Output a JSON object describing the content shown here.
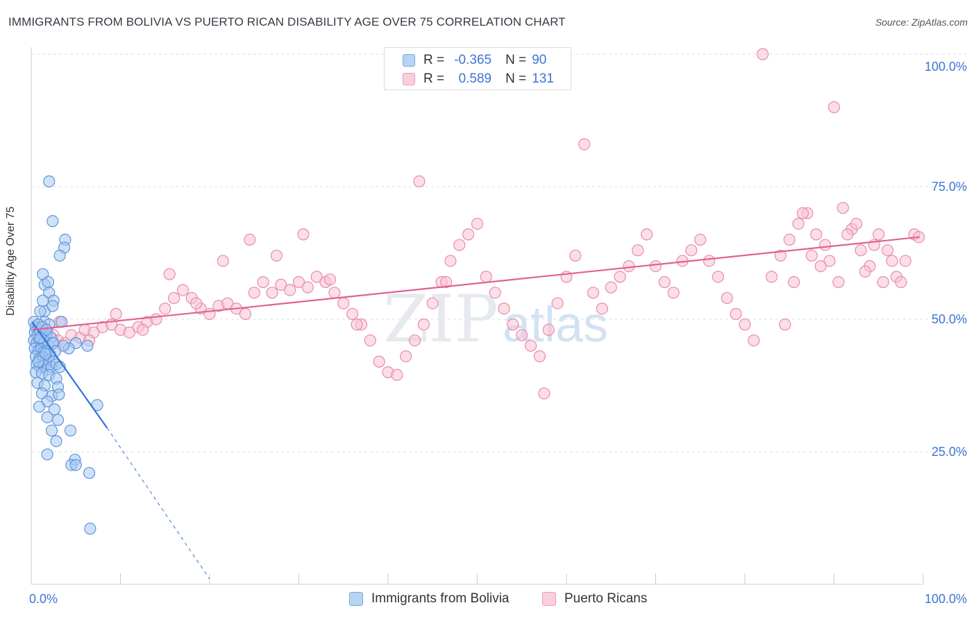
{
  "header": {
    "title": "IMMIGRANTS FROM BOLIVIA VS PUERTO RICAN DISABILITY AGE OVER 75 CORRELATION CHART",
    "source": "Source: ZipAtlas.com"
  },
  "legend": {
    "series1": {
      "r_label": "R =",
      "r_value": "-0.365",
      "n_label": "N =",
      "n_value": "90"
    },
    "series2": {
      "r_label": "R =",
      "r_value": "0.589",
      "n_label": "N =",
      "n_value": "131"
    }
  },
  "watermark": {
    "zip": "ZIP",
    "atlas": "atlas"
  },
  "colors": {
    "blue_fill": "#a8c8f0",
    "blue_stroke": "#5c94dc",
    "blue_line": "#2f72d6",
    "pink_fill": "#f7c3d4",
    "pink_stroke": "#e98aab",
    "pink_line": "#e0628e",
    "axis_text": "#3b75d4",
    "grid": "#dddddd"
  },
  "chart_data": {
    "type": "scatter",
    "title": "IMMIGRANTS FROM BOLIVIA VS PUERTO RICAN DISABILITY AGE OVER 75 CORRELATION CHART",
    "xlabel": "",
    "ylabel": "Disability Age Over 75",
    "x_tick_labels": [
      "0.0%",
      "100.0%"
    ],
    "y_tick_labels": [
      "25.0%",
      "50.0%",
      "75.0%",
      "100.0%"
    ],
    "y_ticks": [
      25,
      50,
      75,
      100
    ],
    "xlim": [
      0,
      100
    ],
    "ylim": [
      0,
      100
    ],
    "series": [
      {
        "name": "Immigrants from Bolivia",
        "r": -0.365,
        "n": 90,
        "trend": {
          "x0": 0.1,
          "y0": 49.5,
          "x1": 8.5,
          "y1": 29.5,
          "dash_x1": 20.0,
          "dash_y1": 1.0
        },
        "points": [
          [
            0.3,
            49.5
          ],
          [
            0.5,
            48.5
          ],
          [
            0.8,
            49
          ],
          [
            1.2,
            48
          ],
          [
            1.5,
            49.5
          ],
          [
            2.0,
            49
          ],
          [
            0.4,
            47.5
          ],
          [
            0.7,
            47
          ],
          [
            1.0,
            47.5
          ],
          [
            1.3,
            46.8
          ],
          [
            1.7,
            47
          ],
          [
            2.2,
            46.5
          ],
          [
            0.3,
            46
          ],
          [
            0.6,
            45.5
          ],
          [
            0.9,
            46
          ],
          [
            1.2,
            45.2
          ],
          [
            1.5,
            45.8
          ],
          [
            1.9,
            45
          ],
          [
            2.4,
            45.5
          ],
          [
            0.4,
            44.5
          ],
          [
            0.8,
            44
          ],
          [
            1.1,
            44.3
          ],
          [
            1.4,
            43.8
          ],
          [
            1.8,
            44
          ],
          [
            2.1,
            43.5
          ],
          [
            0.5,
            43
          ],
          [
            0.9,
            42.5
          ],
          [
            1.3,
            42.8
          ],
          [
            1.6,
            42
          ],
          [
            2.0,
            42.3
          ],
          [
            2.5,
            42
          ],
          [
            0.6,
            41.5
          ],
          [
            1.0,
            41
          ],
          [
            1.4,
            41.2
          ],
          [
            1.8,
            40.5
          ],
          [
            2.3,
            41
          ],
          [
            2.8,
            41.5
          ],
          [
            3.2,
            41
          ],
          [
            0.5,
            40
          ],
          [
            1.2,
            39.8
          ],
          [
            2.0,
            39.5
          ],
          [
            2.8,
            38.8
          ],
          [
            0.7,
            38
          ],
          [
            1.5,
            37.5
          ],
          [
            3.0,
            37.2
          ],
          [
            1.2,
            36
          ],
          [
            2.3,
            35.5
          ],
          [
            3.1,
            35.8
          ],
          [
            1.8,
            34.5
          ],
          [
            0.9,
            33.5
          ],
          [
            2.6,
            33
          ],
          [
            7.4,
            33.8
          ],
          [
            1.8,
            31.5
          ],
          [
            3.0,
            31
          ],
          [
            2.3,
            29
          ],
          [
            4.4,
            29
          ],
          [
            2.8,
            27
          ],
          [
            1.8,
            24.5
          ],
          [
            4.9,
            23.5
          ],
          [
            4.5,
            22.5
          ],
          [
            5.0,
            22.5
          ],
          [
            6.5,
            21
          ],
          [
            6.6,
            10.5
          ],
          [
            2.0,
            76
          ],
          [
            2.4,
            68.5
          ],
          [
            3.8,
            65
          ],
          [
            3.7,
            63.5
          ],
          [
            3.2,
            62
          ],
          [
            1.3,
            58.5
          ],
          [
            1.5,
            56.5
          ],
          [
            1.9,
            57
          ],
          [
            2.0,
            55
          ],
          [
            2.5,
            53.5
          ],
          [
            1.3,
            53.5
          ],
          [
            1.5,
            51.5
          ],
          [
            2.4,
            52.5
          ],
          [
            1.0,
            51.5
          ],
          [
            3.4,
            49.5
          ],
          [
            0.8,
            49
          ],
          [
            1.2,
            48.5
          ],
          [
            1.7,
            48
          ],
          [
            5.0,
            45.5
          ],
          [
            4.2,
            44.5
          ],
          [
            6.3,
            45
          ],
          [
            2.5,
            45.5
          ],
          [
            3.6,
            45
          ],
          [
            1.6,
            43.5
          ],
          [
            0.8,
            42
          ],
          [
            2.7,
            44
          ],
          [
            1.0,
            46.5
          ]
        ]
      },
      {
        "name": "Puerto Ricans",
        "r": 0.589,
        "n": 131,
        "trend": {
          "x0": 0.1,
          "y0": 48.0,
          "x1": 99.6,
          "y1": 65.5
        },
        "points": [
          [
            1.2,
            48.5
          ],
          [
            1.8,
            47.5
          ],
          [
            2.5,
            47
          ],
          [
            3.0,
            46
          ],
          [
            3.8,
            45.5
          ],
          [
            4.5,
            47
          ],
          [
            5.5,
            46.5
          ],
          [
            6.0,
            48
          ],
          [
            7.0,
            47.5
          ],
          [
            8.0,
            48.5
          ],
          [
            9.0,
            49
          ],
          [
            10.0,
            48
          ],
          [
            11.0,
            47.5
          ],
          [
            12.0,
            48.5
          ],
          [
            13.0,
            49.5
          ],
          [
            14.0,
            50
          ],
          [
            15.0,
            52
          ],
          [
            16.0,
            54
          ],
          [
            17.0,
            55.5
          ],
          [
            18.0,
            54
          ],
          [
            19.0,
            52
          ],
          [
            20.0,
            51
          ],
          [
            21.0,
            52.5
          ],
          [
            22.0,
            53
          ],
          [
            23.0,
            52
          ],
          [
            24.0,
            51
          ],
          [
            25.0,
            55
          ],
          [
            26.0,
            57
          ],
          [
            27.0,
            55
          ],
          [
            28.0,
            56.5
          ],
          [
            29.0,
            55.5
          ],
          [
            30.0,
            57
          ],
          [
            31.0,
            56
          ],
          [
            32.0,
            58
          ],
          [
            33.0,
            57
          ],
          [
            34.0,
            55
          ],
          [
            35.0,
            53
          ],
          [
            36.0,
            51
          ],
          [
            37.0,
            49
          ],
          [
            38.0,
            46
          ],
          [
            39.0,
            42
          ],
          [
            40.0,
            40
          ],
          [
            41.0,
            39.5
          ],
          [
            42.0,
            43
          ],
          [
            43.0,
            46
          ],
          [
            44.0,
            49
          ],
          [
            45.0,
            53
          ],
          [
            46.0,
            57
          ],
          [
            47.0,
            61
          ],
          [
            48.0,
            64
          ],
          [
            49.0,
            66
          ],
          [
            50.0,
            68
          ],
          [
            51.0,
            58
          ],
          [
            52.0,
            55
          ],
          [
            53.0,
            52
          ],
          [
            54.0,
            49
          ],
          [
            55.0,
            47
          ],
          [
            56.0,
            45
          ],
          [
            57.0,
            43
          ],
          [
            57.5,
            36
          ],
          [
            58.0,
            48
          ],
          [
            59.0,
            53
          ],
          [
            60.0,
            58
          ],
          [
            61.0,
            62
          ],
          [
            62.0,
            83
          ],
          [
            63.0,
            55
          ],
          [
            64.0,
            52
          ],
          [
            65.0,
            56
          ],
          [
            66.0,
            58
          ],
          [
            67.0,
            60
          ],
          [
            68.0,
            63
          ],
          [
            69.0,
            66
          ],
          [
            70.0,
            60
          ],
          [
            71.0,
            57
          ],
          [
            72.0,
            55
          ],
          [
            73.0,
            61
          ],
          [
            74.0,
            63
          ],
          [
            75.0,
            65
          ],
          [
            76.0,
            61
          ],
          [
            77.0,
            58
          ],
          [
            78.0,
            54
          ],
          [
            79.0,
            51
          ],
          [
            80.0,
            49
          ],
          [
            81.0,
            46
          ],
          [
            82.0,
            100
          ],
          [
            83.0,
            58
          ],
          [
            84.0,
            62
          ],
          [
            85.0,
            65
          ],
          [
            86.0,
            68
          ],
          [
            87.0,
            70
          ],
          [
            88.0,
            66
          ],
          [
            89.0,
            64
          ],
          [
            90.0,
            90
          ],
          [
            91.0,
            71
          ],
          [
            92.0,
            67
          ],
          [
            93.0,
            63
          ],
          [
            94.0,
            60
          ],
          [
            95.0,
            66
          ],
          [
            96.0,
            63
          ],
          [
            97.0,
            58
          ],
          [
            98.0,
            61
          ],
          [
            99.0,
            66
          ],
          [
            99.5,
            65.5
          ],
          [
            95.5,
            57
          ],
          [
            93.5,
            59
          ],
          [
            91.5,
            66
          ],
          [
            89.5,
            61
          ],
          [
            87.5,
            62
          ],
          [
            85.5,
            57
          ],
          [
            84.5,
            49
          ],
          [
            86.5,
            70
          ],
          [
            88.5,
            60
          ],
          [
            90.5,
            57
          ],
          [
            92.5,
            68
          ],
          [
            94.5,
            64
          ],
          [
            96.5,
            61
          ],
          [
            97.5,
            57
          ],
          [
            3.2,
            49.5
          ],
          [
            6.5,
            46
          ],
          [
            9.5,
            51
          ],
          [
            12.5,
            48
          ],
          [
            15.5,
            58.5
          ],
          [
            18.5,
            53
          ],
          [
            21.5,
            61
          ],
          [
            24.5,
            65
          ],
          [
            27.5,
            62
          ],
          [
            30.5,
            66
          ],
          [
            33.5,
            57.5
          ],
          [
            36.5,
            49
          ],
          [
            43.5,
            76
          ],
          [
            46.5,
            57
          ]
        ]
      }
    ]
  }
}
